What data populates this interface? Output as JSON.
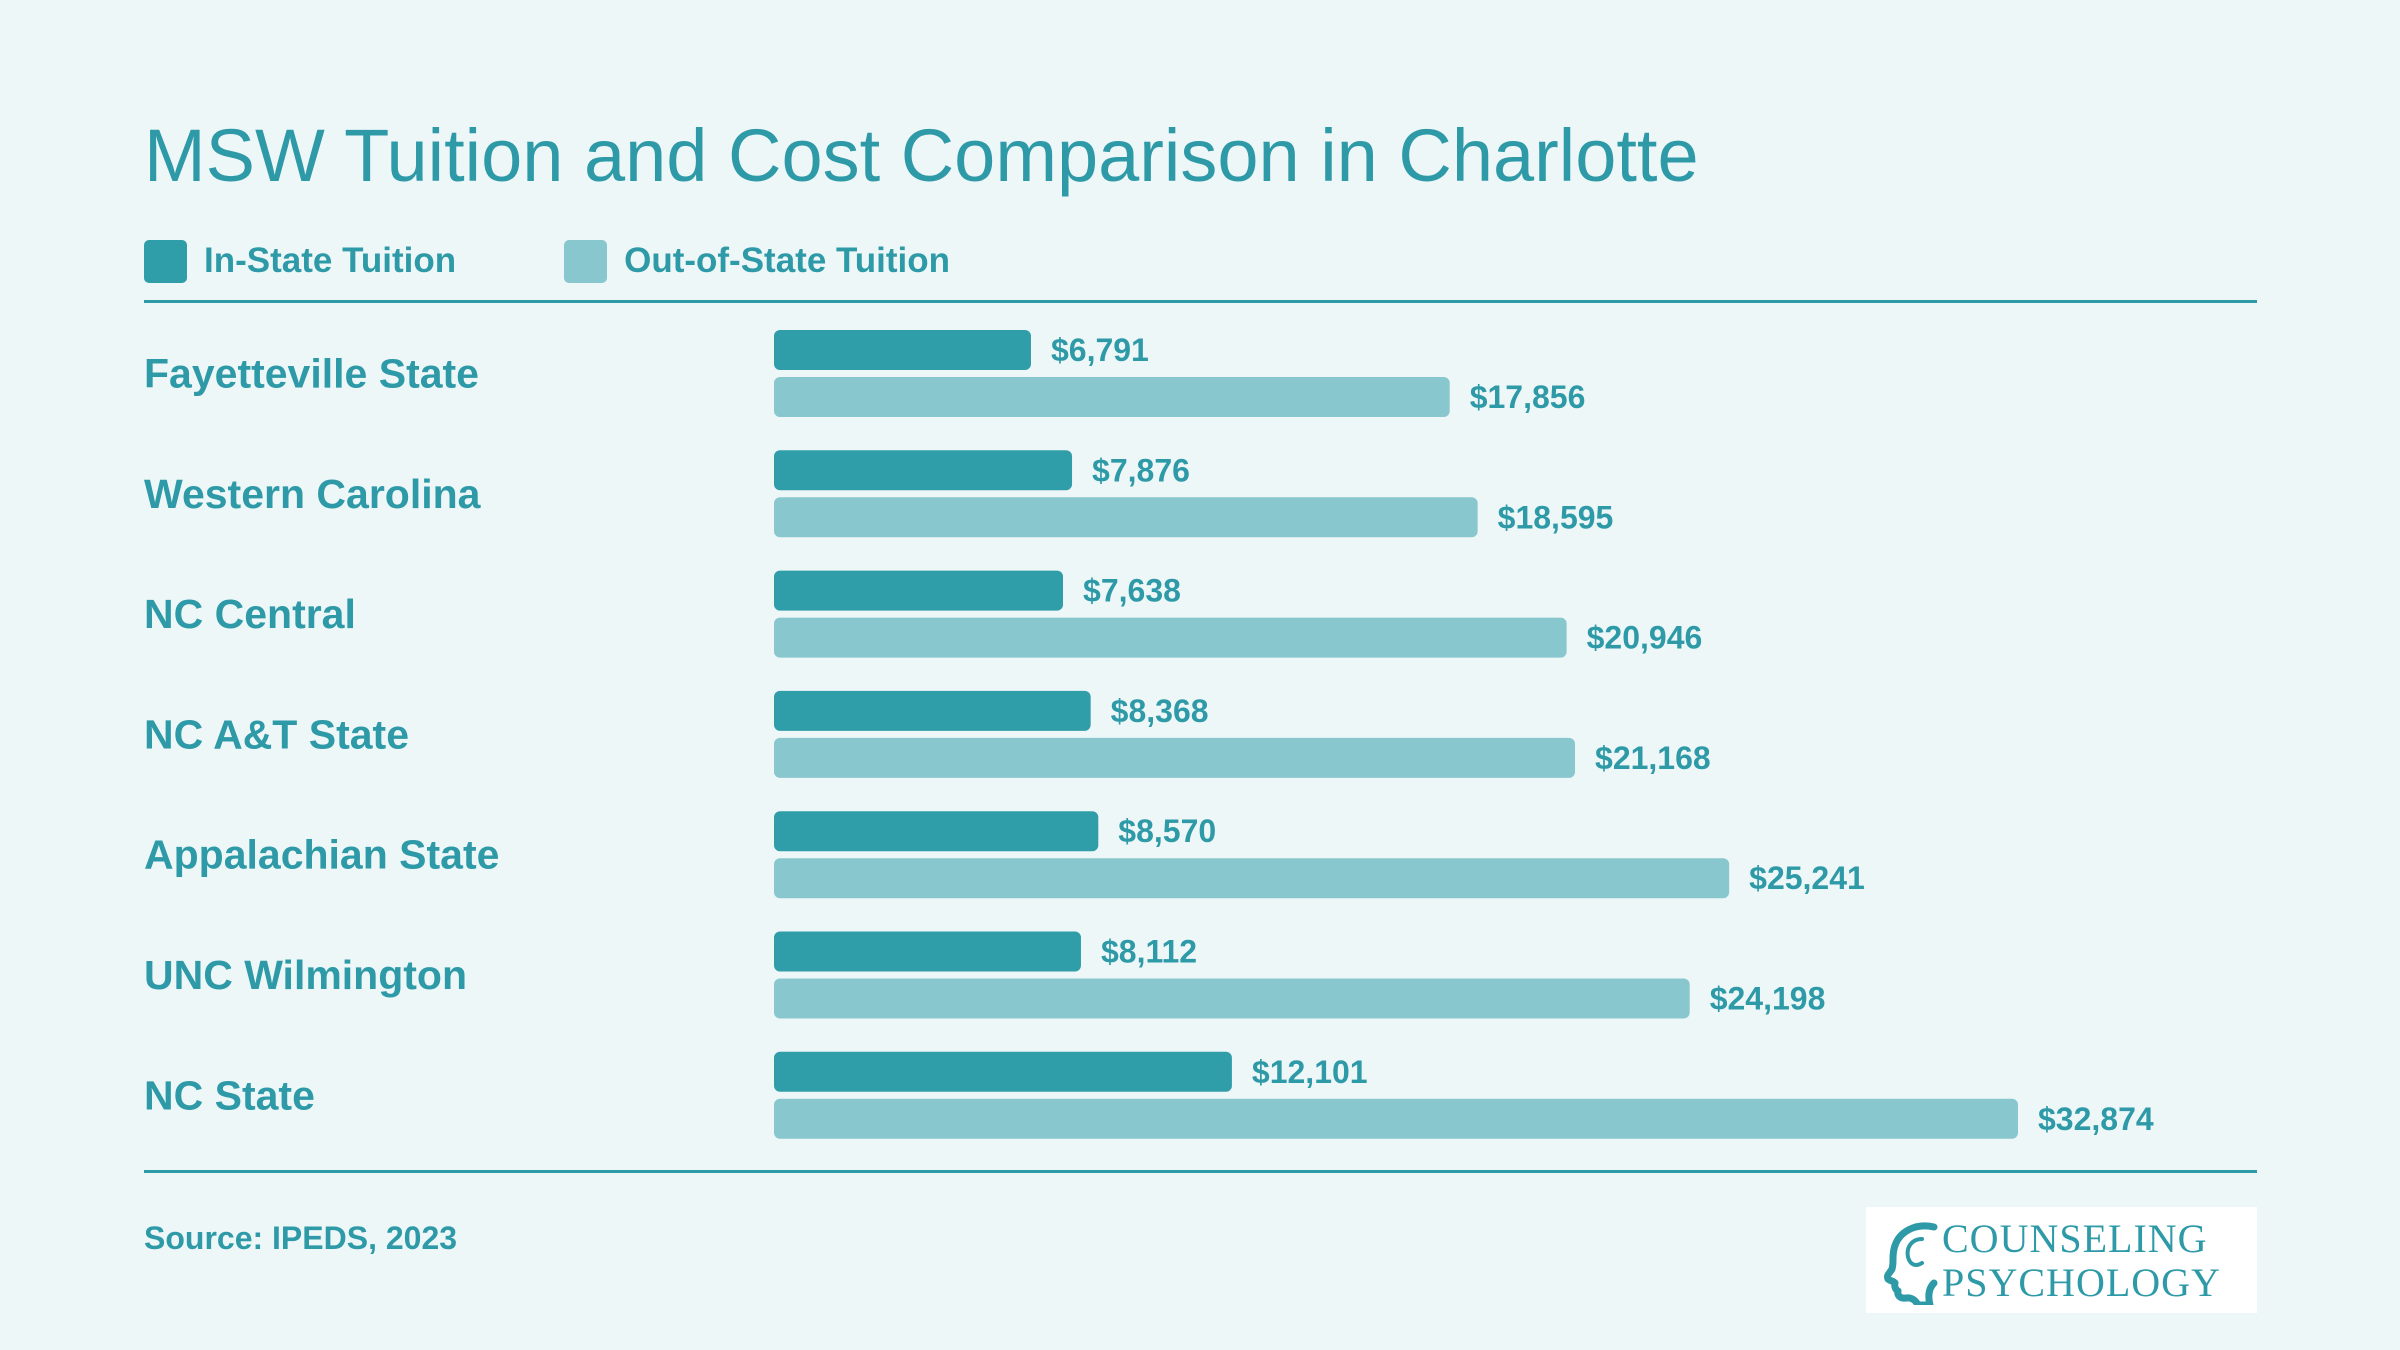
{
  "colors": {
    "accent": "#2e9aa7",
    "in_state": "#309ea9",
    "out_of_state": "#89c7cf",
    "background": "#eef7f8",
    "rule": "#2e9aa7"
  },
  "source": "Source: IPEDS, 2023",
  "logo": {
    "line1": "COUNSELING",
    "line2": "PSYCHOLOGY",
    "icon": "head-profile-icon"
  },
  "chart_data": {
    "type": "bar",
    "orientation": "horizontal",
    "title": "MSW Tuition and Cost Comparison in Charlotte",
    "legend_position": "top-left",
    "grid": false,
    "xlim": [
      0,
      32874
    ],
    "categories": [
      "Fayetteville State",
      "Western Carolina",
      "NC Central",
      "NC A&T State",
      "Appalachian State",
      "UNC Wilmington",
      "NC State"
    ],
    "series": [
      {
        "name": "In-State Tuition",
        "values": [
          6791,
          7876,
          7638,
          8368,
          8570,
          8112,
          12101
        ],
        "labels": [
          "$6,791",
          "$7,876",
          "$7,638",
          "$8,368",
          "$8,570",
          "$8,112",
          "$12,101"
        ]
      },
      {
        "name": "Out-of-State Tuition",
        "values": [
          17856,
          18595,
          20946,
          21168,
          25241,
          24198,
          32874
        ],
        "labels": [
          "$17,856",
          "$18,595",
          "$20,946",
          "$21,168",
          "$25,241",
          "$24,198",
          "$32,874"
        ]
      }
    ]
  }
}
